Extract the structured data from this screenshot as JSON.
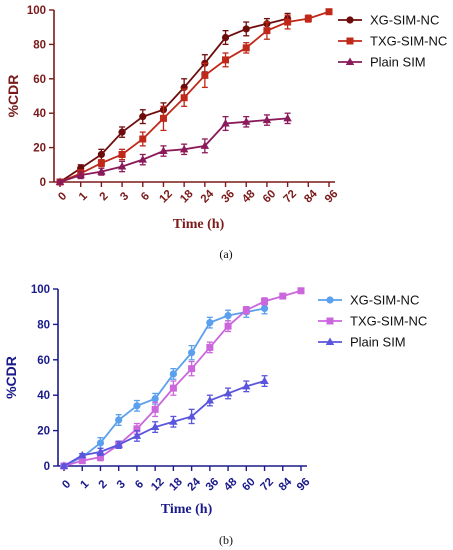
{
  "chart_data": [
    {
      "type": "line",
      "panel_label": "(a)",
      "xlabel": "Time (h)",
      "ylabel": "%CDR",
      "categories": [
        "0",
        "1",
        "2",
        "3",
        "6",
        "12",
        "18",
        "24",
        "36",
        "48",
        "60",
        "72",
        "84",
        "96"
      ],
      "ylim": [
        0,
        100
      ],
      "yticks": [
        "0",
        "20",
        "40",
        "60",
        "80",
        "100"
      ],
      "legend_position": "right",
      "axis_color": "#7a1a1a",
      "label_color": "#7a1a1a",
      "series": [
        {
          "name": "XG-SIM-NC",
          "marker": "circle",
          "color": "#6e0c0c",
          "values": [
            0,
            8,
            16,
            29,
            38,
            42,
            55,
            69,
            84,
            89,
            92,
            95,
            null,
            null
          ],
          "errors": [
            1,
            2,
            3,
            3,
            4,
            4,
            5,
            5,
            4,
            4,
            3,
            3,
            null,
            null
          ]
        },
        {
          "name": "TXG-SIM-NC",
          "marker": "square",
          "color": "#c0281a",
          "values": [
            0,
            5,
            11,
            16,
            25,
            37,
            49,
            62,
            71,
            78,
            88,
            93,
            95,
            99
          ],
          "errors": [
            1,
            2,
            2,
            3,
            4,
            7,
            5,
            7,
            4,
            3,
            5,
            4,
            2,
            1
          ]
        },
        {
          "name": "Plain SIM",
          "marker": "triangle",
          "color": "#8a1a5a",
          "values": [
            0,
            4,
            6,
            9,
            13,
            18,
            19,
            21,
            34,
            35,
            36,
            37,
            null,
            null
          ],
          "errors": [
            1,
            2,
            2,
            3,
            3,
            3,
            3,
            4,
            4,
            3,
            3,
            3,
            null,
            null
          ]
        }
      ]
    },
    {
      "type": "line",
      "panel_label": "(b)",
      "xlabel": "Time (h)",
      "ylabel": "%CDR",
      "categories": [
        "0",
        "1",
        "2",
        "3",
        "6",
        "12",
        "18",
        "24",
        "36",
        "48",
        "60",
        "72",
        "84",
        "96"
      ],
      "ylim": [
        0,
        100
      ],
      "yticks": [
        "0",
        "20",
        "40",
        "60",
        "80",
        "100"
      ],
      "legend_position": "right",
      "axis_color": "#1a1a8a",
      "label_color": "#1a1a8a",
      "series": [
        {
          "name": "XG-SIM-NC",
          "marker": "circle",
          "color": "#5aa0ee",
          "values": [
            0,
            5,
            13,
            26,
            34,
            38,
            52,
            64,
            81,
            85,
            87,
            89,
            null,
            null
          ],
          "errors": [
            1,
            2,
            3,
            3,
            3,
            3,
            3,
            4,
            3,
            3,
            3,
            3,
            null,
            null
          ]
        },
        {
          "name": "TXG-SIM-NC",
          "marker": "square",
          "color": "#cc66dd",
          "values": [
            0,
            3,
            5,
            12,
            21,
            32,
            44,
            55,
            67,
            79,
            88,
            93,
            96,
            99
          ],
          "errors": [
            1,
            1,
            2,
            2,
            3,
            4,
            4,
            4,
            3,
            3,
            2,
            2,
            1,
            1
          ]
        },
        {
          "name": "Plain SIM",
          "marker": "triangle",
          "color": "#5a55dd",
          "values": [
            0,
            6,
            8,
            12,
            17,
            22,
            25,
            28,
            37,
            41,
            45,
            48,
            null,
            null
          ],
          "errors": [
            1,
            1,
            2,
            2,
            3,
            3,
            3,
            4,
            3,
            3,
            3,
            3,
            null,
            null
          ]
        }
      ]
    }
  ]
}
